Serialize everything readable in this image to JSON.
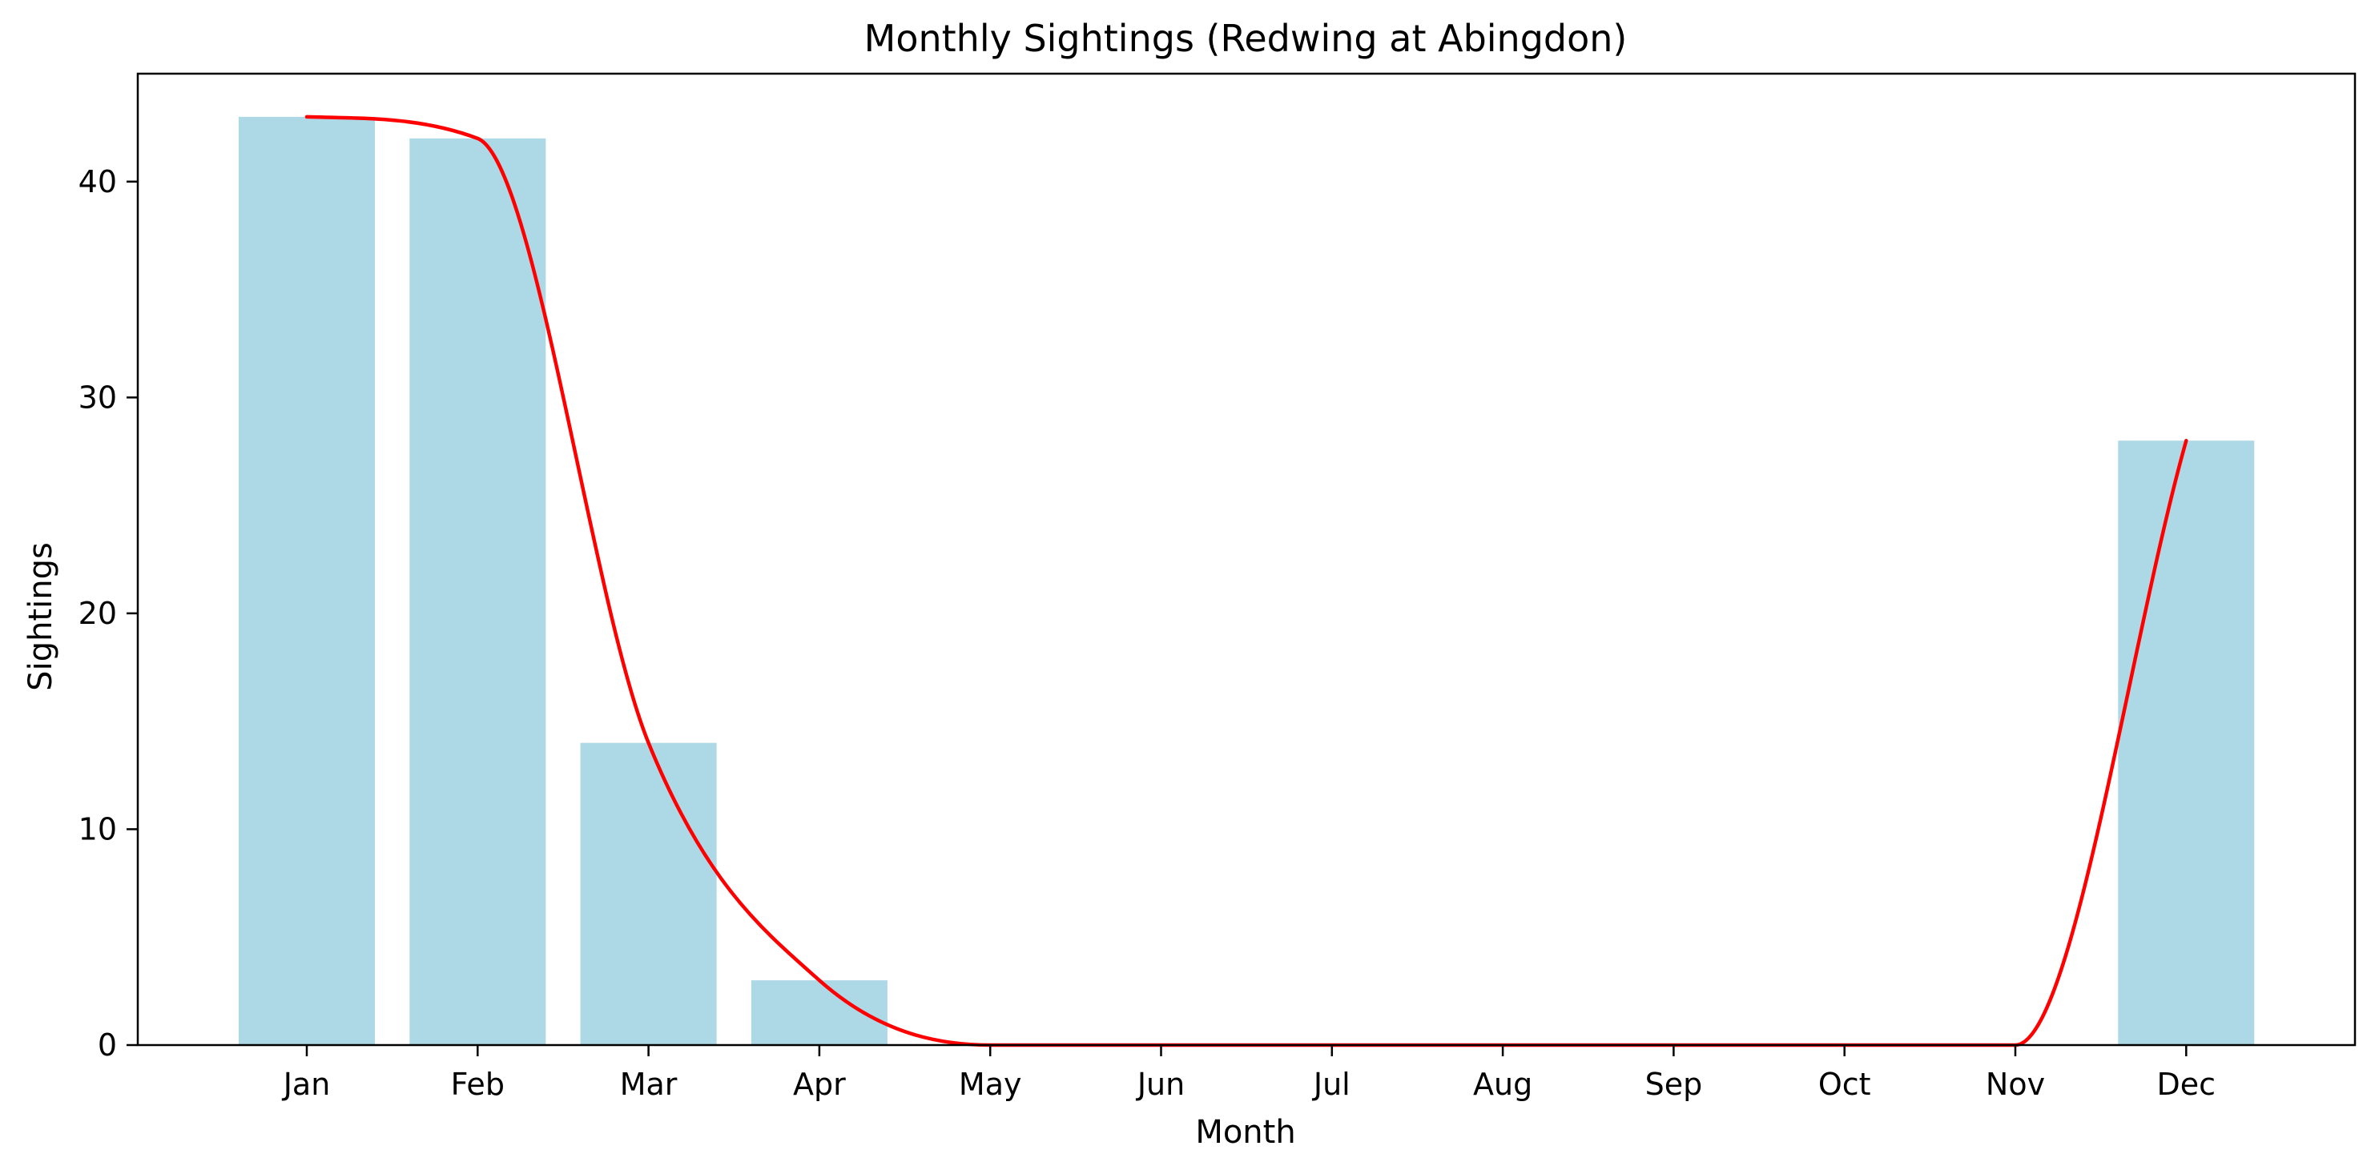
{
  "chart_data": {
    "type": "bar",
    "title": "Monthly Sightings (Redwing at Abingdon)",
    "xlabel": "Month",
    "ylabel": "Sightings",
    "categories": [
      "Jan",
      "Feb",
      "Mar",
      "Apr",
      "May",
      "Jun",
      "Jul",
      "Aug",
      "Sep",
      "Oct",
      "Nov",
      "Dec"
    ],
    "values": [
      43,
      42,
      14,
      3,
      0,
      0,
      0,
      0,
      0,
      0,
      0,
      28
    ],
    "ylim": [
      0,
      45
    ],
    "yticks": [
      0,
      10,
      20,
      30,
      40
    ],
    "grid": false,
    "overlay_line": {
      "type": "line",
      "curve": "smoothed",
      "values": [
        43,
        42,
        14,
        3,
        0,
        0,
        0,
        0,
        0,
        0,
        0,
        28
      ]
    },
    "colors": {
      "bar": "#add8e6",
      "line": "#ff0000",
      "axes": "#000000",
      "background": "#ffffff"
    }
  }
}
